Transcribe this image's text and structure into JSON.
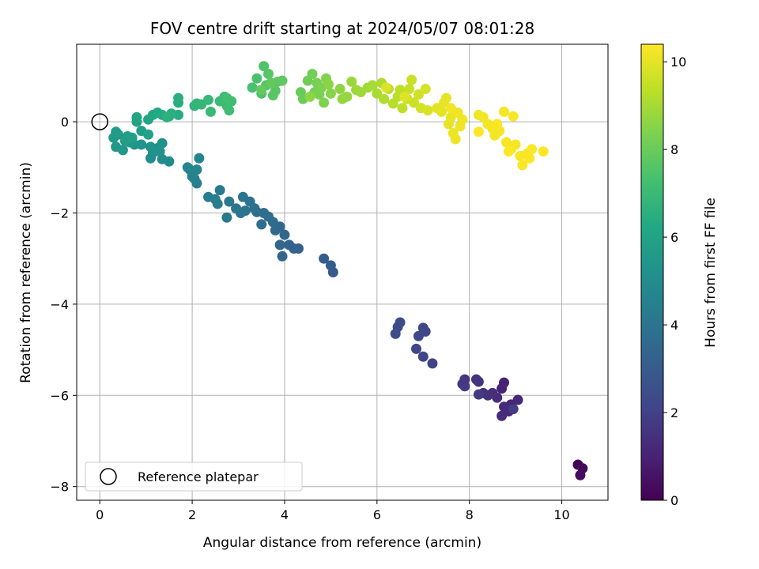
{
  "chart_data": {
    "type": "scatter",
    "title": "FOV centre drift starting at 2024/05/07 08:01:28",
    "xlabel": "Angular distance from reference (arcmin)",
    "ylabel": "Rotation from reference (arcmin)",
    "xlim": [
      -0.5,
      11.0
    ],
    "ylim": [
      -8.3,
      1.7
    ],
    "xticks": [
      0,
      2,
      4,
      6,
      8,
      10
    ],
    "yticks": [
      -8,
      -6,
      -4,
      -2,
      0
    ],
    "grid": true,
    "legend": {
      "placement": "lower-left",
      "entries": [
        "Reference platepar"
      ]
    },
    "reference_point": {
      "x": 0,
      "y": 0
    },
    "colorbar": {
      "label": "Hours from first FF file",
      "colormap": "viridis",
      "range": [
        0,
        10.4
      ],
      "ticks": [
        0,
        2,
        4,
        6,
        8,
        10
      ]
    },
    "points": [
      {
        "x": 10.35,
        "y": -7.52,
        "t": 0.1
      },
      {
        "x": 10.45,
        "y": -7.6,
        "t": 0.2
      },
      {
        "x": 10.4,
        "y": -7.75,
        "t": 0.3
      },
      {
        "x": 8.75,
        "y": -5.72,
        "t": 1.0
      },
      {
        "x": 8.7,
        "y": -5.85,
        "t": 1.05
      },
      {
        "x": 8.9,
        "y": -6.2,
        "t": 1.1
      },
      {
        "x": 9.05,
        "y": -6.1,
        "t": 1.15
      },
      {
        "x": 8.85,
        "y": -6.35,
        "t": 1.2
      },
      {
        "x": 8.75,
        "y": -6.25,
        "t": 1.25
      },
      {
        "x": 8.7,
        "y": -6.45,
        "t": 1.3
      },
      {
        "x": 8.6,
        "y": -6.05,
        "t": 1.35
      },
      {
        "x": 8.5,
        "y": -5.95,
        "t": 1.4
      },
      {
        "x": 8.4,
        "y": -6.0,
        "t": 1.45
      },
      {
        "x": 8.3,
        "y": -5.95,
        "t": 1.5
      },
      {
        "x": 8.2,
        "y": -5.7,
        "t": 1.55
      },
      {
        "x": 8.15,
        "y": -5.65,
        "t": 1.6
      },
      {
        "x": 7.9,
        "y": -5.65,
        "t": 1.65
      },
      {
        "x": 7.85,
        "y": -5.75,
        "t": 1.7
      },
      {
        "x": 7.9,
        "y": -5.8,
        "t": 1.75
      },
      {
        "x": 8.2,
        "y": -5.98,
        "t": 1.8
      },
      {
        "x": 8.95,
        "y": -6.3,
        "t": 1.85
      },
      {
        "x": 7.2,
        "y": -5.3,
        "t": 2.05
      },
      {
        "x": 7.0,
        "y": -5.15,
        "t": 2.1
      },
      {
        "x": 6.85,
        "y": -4.98,
        "t": 2.15
      },
      {
        "x": 7.05,
        "y": -4.6,
        "t": 2.2
      },
      {
        "x": 7.0,
        "y": -4.52,
        "t": 2.25
      },
      {
        "x": 6.9,
        "y": -4.7,
        "t": 2.3
      },
      {
        "x": 6.5,
        "y": -4.4,
        "t": 2.35
      },
      {
        "x": 6.45,
        "y": -4.5,
        "t": 2.4
      },
      {
        "x": 6.4,
        "y": -4.65,
        "t": 2.45
      },
      {
        "x": 5.05,
        "y": -3.3,
        "t": 2.9
      },
      {
        "x": 5.0,
        "y": -3.15,
        "t": 2.95
      },
      {
        "x": 4.85,
        "y": -3.0,
        "t": 3.0
      },
      {
        "x": 4.3,
        "y": -2.78,
        "t": 3.2
      },
      {
        "x": 4.2,
        "y": -2.78,
        "t": 3.25
      },
      {
        "x": 4.1,
        "y": -2.7,
        "t": 3.3
      },
      {
        "x": 3.95,
        "y": -2.95,
        "t": 3.35
      },
      {
        "x": 3.9,
        "y": -2.7,
        "t": 3.4
      },
      {
        "x": 4.0,
        "y": -2.48,
        "t": 3.45
      },
      {
        "x": 3.9,
        "y": -2.3,
        "t": 3.5
      },
      {
        "x": 3.8,
        "y": -2.38,
        "t": 3.55
      },
      {
        "x": 3.75,
        "y": -2.2,
        "t": 3.6
      },
      {
        "x": 3.65,
        "y": -2.08,
        "t": 3.65
      },
      {
        "x": 3.55,
        "y": -2.0,
        "t": 3.7
      },
      {
        "x": 3.5,
        "y": -2.25,
        "t": 3.75
      },
      {
        "x": 3.4,
        "y": -1.98,
        "t": 3.8
      },
      {
        "x": 3.35,
        "y": -1.9,
        "t": 3.85
      },
      {
        "x": 3.25,
        "y": -1.75,
        "t": 3.9
      },
      {
        "x": 3.1,
        "y": -1.65,
        "t": 3.95
      },
      {
        "x": 3.15,
        "y": -1.95,
        "t": 4.0
      },
      {
        "x": 3.05,
        "y": -2.0,
        "t": 4.05
      },
      {
        "x": 2.95,
        "y": -1.9,
        "t": 4.1
      },
      {
        "x": 2.8,
        "y": -1.75,
        "t": 4.15
      },
      {
        "x": 2.75,
        "y": -2.1,
        "t": 4.2
      },
      {
        "x": 2.6,
        "y": -1.5,
        "t": 4.25
      },
      {
        "x": 2.55,
        "y": -1.8,
        "t": 4.3
      },
      {
        "x": 2.5,
        "y": -1.7,
        "t": 4.35
      },
      {
        "x": 2.35,
        "y": -1.65,
        "t": 4.4
      },
      {
        "x": 2.1,
        "y": -1.35,
        "t": 4.45
      },
      {
        "x": 2.05,
        "y": -1.25,
        "t": 4.5
      },
      {
        "x": 2.0,
        "y": -1.2,
        "t": 4.55
      },
      {
        "x": 1.95,
        "y": -1.05,
        "t": 4.6
      },
      {
        "x": 2.1,
        "y": -1.05,
        "t": 4.65
      },
      {
        "x": 2.15,
        "y": -0.8,
        "t": 4.7
      },
      {
        "x": 1.9,
        "y": -1.0,
        "t": 4.75
      },
      {
        "x": 1.5,
        "y": -0.87,
        "t": 4.95
      },
      {
        "x": 1.35,
        "y": -0.82,
        "t": 5.0
      },
      {
        "x": 1.1,
        "y": -0.8,
        "t": 5.05
      },
      {
        "x": 1.15,
        "y": -0.68,
        "t": 5.1
      },
      {
        "x": 1.25,
        "y": -0.58,
        "t": 5.15
      },
      {
        "x": 1.35,
        "y": -0.47,
        "t": 5.2
      },
      {
        "x": 1.3,
        "y": -0.65,
        "t": 5.25
      },
      {
        "x": 1.1,
        "y": -0.55,
        "t": 5.3
      },
      {
        "x": 0.9,
        "y": -0.5,
        "t": 5.35
      },
      {
        "x": 0.75,
        "y": -0.5,
        "t": 5.4
      },
      {
        "x": 0.65,
        "y": -0.45,
        "t": 5.45
      },
      {
        "x": 0.5,
        "y": -0.62,
        "t": 5.5
      },
      {
        "x": 0.35,
        "y": -0.55,
        "t": 5.55
      },
      {
        "x": 0.3,
        "y": -0.35,
        "t": 5.6
      },
      {
        "x": 0.4,
        "y": -0.28,
        "t": 5.65
      },
      {
        "x": 0.35,
        "y": -0.22,
        "t": 5.7
      },
      {
        "x": 0.55,
        "y": -0.42,
        "t": 5.75
      },
      {
        "x": 0.6,
        "y": -0.32,
        "t": 5.8
      },
      {
        "x": 0.7,
        "y": -0.35,
        "t": 5.85
      },
      {
        "x": 0.9,
        "y": -0.2,
        "t": 5.9
      },
      {
        "x": 1.05,
        "y": -0.28,
        "t": 5.95
      },
      {
        "x": 0.8,
        "y": 0.0,
        "t": 6.05
      },
      {
        "x": 0.8,
        "y": 0.1,
        "t": 6.1
      },
      {
        "x": 1.05,
        "y": 0.05,
        "t": 6.15
      },
      {
        "x": 1.15,
        "y": 0.15,
        "t": 6.2
      },
      {
        "x": 1.25,
        "y": 0.2,
        "t": 6.25
      },
      {
        "x": 1.35,
        "y": 0.15,
        "t": 6.3
      },
      {
        "x": 1.5,
        "y": 0.12,
        "t": 6.35
      },
      {
        "x": 1.7,
        "y": 0.15,
        "t": 6.4
      },
      {
        "x": 1.7,
        "y": 0.42,
        "t": 6.45
      },
      {
        "x": 1.7,
        "y": 0.52,
        "t": 6.5
      },
      {
        "x": 1.55,
        "y": 0.18,
        "t": 6.55
      },
      {
        "x": 1.45,
        "y": 0.1,
        "t": 6.6
      },
      {
        "x": 2.05,
        "y": 0.35,
        "t": 6.75
      },
      {
        "x": 2.1,
        "y": 0.4,
        "t": 6.8
      },
      {
        "x": 2.2,
        "y": 0.38,
        "t": 6.85
      },
      {
        "x": 2.35,
        "y": 0.48,
        "t": 6.9
      },
      {
        "x": 2.4,
        "y": 0.22,
        "t": 6.95
      },
      {
        "x": 2.6,
        "y": 0.45,
        "t": 7.0
      },
      {
        "x": 2.7,
        "y": 0.55,
        "t": 7.05
      },
      {
        "x": 2.75,
        "y": 0.35,
        "t": 7.1
      },
      {
        "x": 2.8,
        "y": 0.25,
        "t": 7.15
      },
      {
        "x": 2.85,
        "y": 0.45,
        "t": 7.2
      },
      {
        "x": 2.75,
        "y": 0.52,
        "t": 7.25
      },
      {
        "x": 3.3,
        "y": 0.75,
        "t": 7.35
      },
      {
        "x": 3.4,
        "y": 0.95,
        "t": 7.4
      },
      {
        "x": 3.5,
        "y": 0.62,
        "t": 7.45
      },
      {
        "x": 3.55,
        "y": 1.22,
        "t": 7.5
      },
      {
        "x": 3.6,
        "y": 0.8,
        "t": 7.55
      },
      {
        "x": 3.65,
        "y": 1.05,
        "t": 7.6
      },
      {
        "x": 3.75,
        "y": 0.58,
        "t": 7.65
      },
      {
        "x": 3.8,
        "y": 0.68,
        "t": 7.7
      },
      {
        "x": 3.85,
        "y": 0.88,
        "t": 7.75
      },
      {
        "x": 3.95,
        "y": 0.9,
        "t": 7.8
      },
      {
        "x": 3.7,
        "y": 0.85,
        "t": 7.85
      },
      {
        "x": 3.5,
        "y": 0.7,
        "t": 7.9
      },
      {
        "x": 4.35,
        "y": 0.65,
        "t": 8.0
      },
      {
        "x": 4.4,
        "y": 0.5,
        "t": 8.05
      },
      {
        "x": 4.5,
        "y": 0.9,
        "t": 8.1
      },
      {
        "x": 4.6,
        "y": 1.05,
        "t": 8.15
      },
      {
        "x": 4.65,
        "y": 0.65,
        "t": 8.2
      },
      {
        "x": 4.7,
        "y": 0.85,
        "t": 8.25
      },
      {
        "x": 4.75,
        "y": 0.6,
        "t": 8.3
      },
      {
        "x": 4.8,
        "y": 0.75,
        "t": 8.35
      },
      {
        "x": 4.85,
        "y": 0.42,
        "t": 8.4
      },
      {
        "x": 4.9,
        "y": 0.95,
        "t": 8.45
      },
      {
        "x": 5.0,
        "y": 0.62,
        "t": 8.5
      },
      {
        "x": 4.95,
        "y": 0.82,
        "t": 8.55
      },
      {
        "x": 4.55,
        "y": 0.55,
        "t": 8.6
      },
      {
        "x": 5.2,
        "y": 0.72,
        "t": 8.65
      },
      {
        "x": 5.25,
        "y": 0.5,
        "t": 8.7
      },
      {
        "x": 5.35,
        "y": 0.55,
        "t": 8.75
      },
      {
        "x": 5.45,
        "y": 0.88,
        "t": 8.8
      },
      {
        "x": 5.55,
        "y": 0.7,
        "t": 8.85
      },
      {
        "x": 5.65,
        "y": 0.65,
        "t": 8.9
      },
      {
        "x": 5.8,
        "y": 0.75,
        "t": 8.95
      },
      {
        "x": 5.9,
        "y": 0.8,
        "t": 9.0
      },
      {
        "x": 6.0,
        "y": 0.62,
        "t": 9.05
      },
      {
        "x": 6.1,
        "y": 0.85,
        "t": 9.1
      },
      {
        "x": 6.15,
        "y": 0.5,
        "t": 9.15
      },
      {
        "x": 6.25,
        "y": 0.72,
        "t": 9.2
      },
      {
        "x": 6.35,
        "y": 0.4,
        "t": 9.25
      },
      {
        "x": 6.45,
        "y": 0.55,
        "t": 9.3
      },
      {
        "x": 6.5,
        "y": 0.7,
        "t": 9.35
      },
      {
        "x": 6.55,
        "y": 0.3,
        "t": 9.4
      },
      {
        "x": 6.65,
        "y": 0.5,
        "t": 9.45
      },
      {
        "x": 6.7,
        "y": 0.72,
        "t": 9.5
      },
      {
        "x": 6.75,
        "y": 0.92,
        "t": 9.55
      },
      {
        "x": 6.8,
        "y": 0.42,
        "t": 9.6
      },
      {
        "x": 6.9,
        "y": 0.6,
        "t": 9.65
      },
      {
        "x": 6.95,
        "y": 0.3,
        "t": 9.7
      },
      {
        "x": 7.05,
        "y": 0.72,
        "t": 9.75
      },
      {
        "x": 7.1,
        "y": 0.25,
        "t": 9.8
      },
      {
        "x": 6.2,
        "y": 0.75,
        "t": 9.85
      },
      {
        "x": 6.6,
        "y": 0.55,
        "t": 9.9
      },
      {
        "x": 7.3,
        "y": 0.3,
        "t": 9.95
      },
      {
        "x": 7.4,
        "y": 0.22,
        "t": 10.0
      },
      {
        "x": 7.45,
        "y": 0.42,
        "t": 10.02
      },
      {
        "x": 7.5,
        "y": 0.52,
        "t": 10.04
      },
      {
        "x": 7.55,
        "y": -0.05,
        "t": 10.06
      },
      {
        "x": 7.6,
        "y": 0.1,
        "t": 10.08
      },
      {
        "x": 7.65,
        "y": -0.25,
        "t": 10.1
      },
      {
        "x": 7.7,
        "y": -0.38,
        "t": 10.12
      },
      {
        "x": 7.75,
        "y": 0.2,
        "t": 10.14
      },
      {
        "x": 7.8,
        "y": -0.1,
        "t": 10.16
      },
      {
        "x": 7.85,
        "y": 0.05,
        "t": 10.18
      },
      {
        "x": 7.6,
        "y": 0.3,
        "t": 10.2
      },
      {
        "x": 8.2,
        "y": 0.15,
        "t": 10.21
      },
      {
        "x": 8.3,
        "y": 0.1,
        "t": 10.22
      },
      {
        "x": 8.4,
        "y": -0.05,
        "t": 10.23
      },
      {
        "x": 8.5,
        "y": -0.15,
        "t": 10.24
      },
      {
        "x": 8.55,
        "y": -0.3,
        "t": 10.25
      },
      {
        "x": 8.65,
        "y": -0.2,
        "t": 10.26
      },
      {
        "x": 8.75,
        "y": 0.22,
        "t": 10.27
      },
      {
        "x": 8.8,
        "y": -0.45,
        "t": 10.28
      },
      {
        "x": 8.9,
        "y": -0.6,
        "t": 10.29
      },
      {
        "x": 8.95,
        "y": 0.12,
        "t": 10.3
      },
      {
        "x": 9.0,
        "y": -0.5,
        "t": 10.31
      },
      {
        "x": 9.1,
        "y": -0.75,
        "t": 10.32
      },
      {
        "x": 9.15,
        "y": -0.95,
        "t": 10.33
      },
      {
        "x": 9.25,
        "y": -0.7,
        "t": 10.34
      },
      {
        "x": 9.35,
        "y": -0.6,
        "t": 10.35
      },
      {
        "x": 9.6,
        "y": -0.65,
        "t": 10.36
      },
      {
        "x": 9.3,
        "y": -0.8,
        "t": 10.37
      },
      {
        "x": 8.2,
        "y": -0.22,
        "t": 10.38
      },
      {
        "x": 8.6,
        "y": -0.05,
        "t": 10.39
      },
      {
        "x": 8.85,
        "y": -0.65,
        "t": 10.4
      }
    ]
  }
}
